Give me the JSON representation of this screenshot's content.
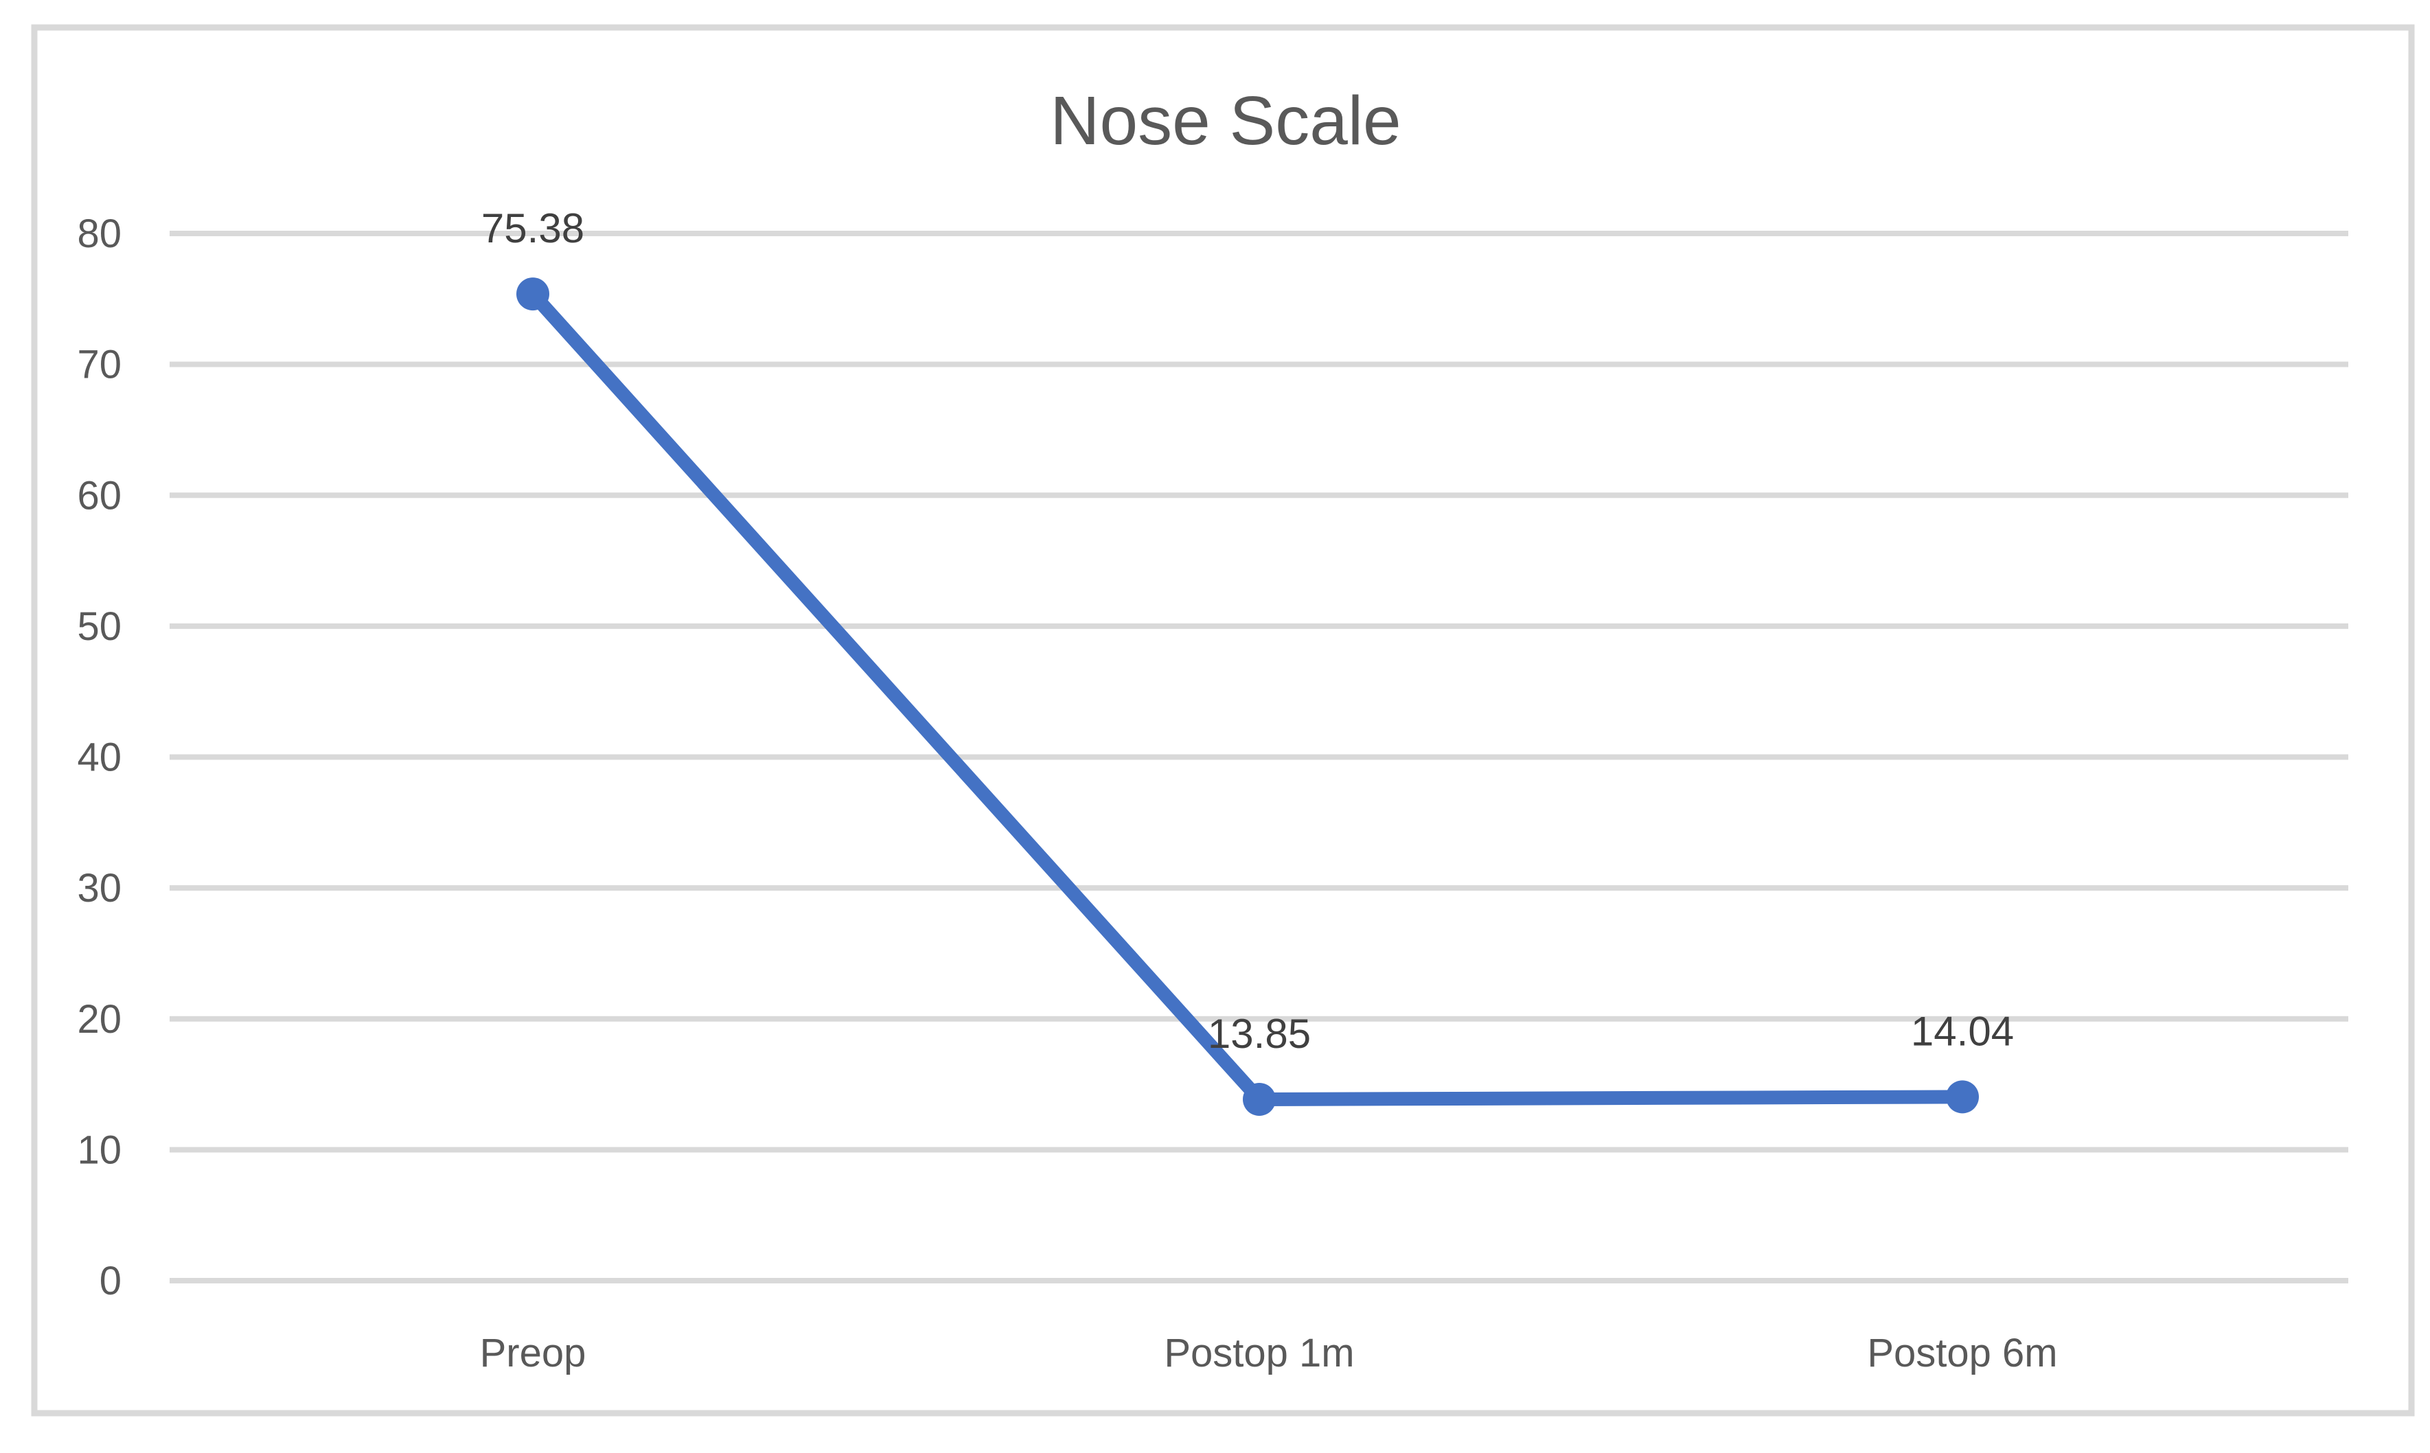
{
  "chart_data": {
    "type": "line",
    "title": "Nose Scale",
    "categories": [
      "Preop",
      "Postop 1m",
      "Postop 6m"
    ],
    "series": [
      {
        "name": "Nose Scale",
        "values": [
          75.38,
          13.85,
          14.04
        ],
        "data_labels": [
          "75.38",
          "13.85",
          "14.04"
        ]
      }
    ],
    "xlabel": "",
    "ylabel": "",
    "ylim": [
      0,
      80
    ],
    "yticks": [
      0,
      10,
      20,
      30,
      40,
      50,
      60,
      70,
      80
    ],
    "grid": "horizontal",
    "legend_position": "none",
    "marker": "circle",
    "colors": {
      "line": "#4472C4",
      "marker": "#4472C4",
      "gridline": "#D9D9D9",
      "frame_border": "#D9D9D9",
      "title_text": "#595959",
      "axis_text": "#595959",
      "data_label_text": "#404040",
      "background": "#FFFFFF"
    }
  }
}
